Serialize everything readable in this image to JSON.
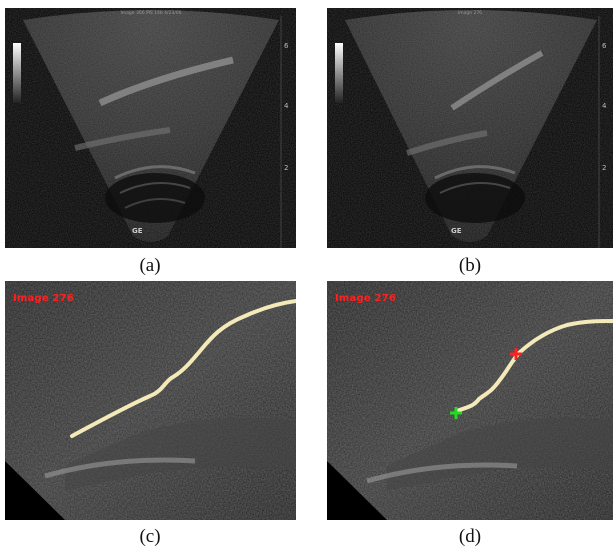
{
  "panels": [
    {
      "id": "a",
      "caption": "(a)",
      "header_text": "Image 366   MS 14b   4/23/06",
      "logo_text": "GE",
      "depth_ticks": [
        "6",
        "4",
        "2"
      ]
    },
    {
      "id": "b",
      "caption": "(b)",
      "header_text": "Image 276",
      "logo_text": "GE",
      "depth_ticks": [
        "6",
        "4",
        "2"
      ]
    },
    {
      "id": "c",
      "caption": "(c)",
      "overlay_label": "Image 276"
    },
    {
      "id": "d",
      "caption": "(d)",
      "overlay_label": "Image 276"
    }
  ],
  "colors": {
    "trace": "#f4e9b8",
    "label_red": "#ff2020",
    "marker_red": "#ff2020",
    "marker_green": "#22dd22",
    "background": "#000000"
  }
}
